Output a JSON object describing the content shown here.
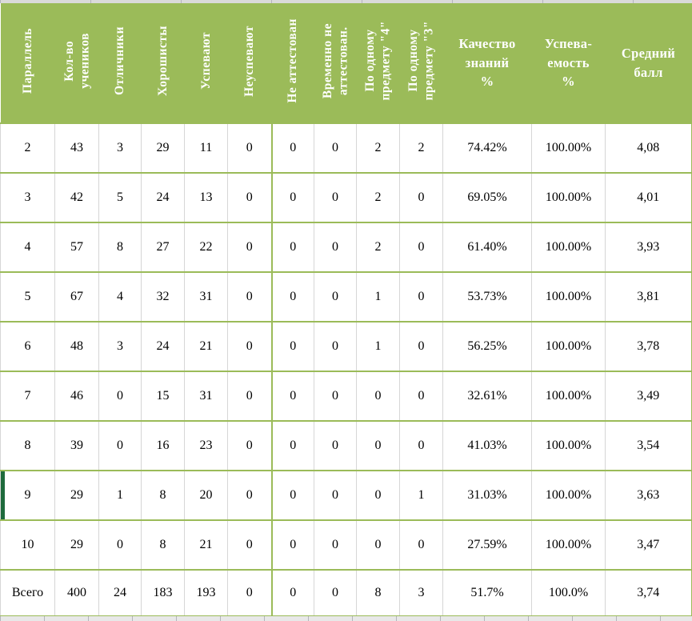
{
  "table": {
    "columns": [
      {
        "id": "parallel",
        "label": "Параллель",
        "orientation": "vertical"
      },
      {
        "id": "student-count",
        "label": "Кол-во\nучеников",
        "orientation": "vertical"
      },
      {
        "id": "excellent",
        "label": "Отличники",
        "orientation": "vertical"
      },
      {
        "id": "good-students",
        "label": "Хорошисты",
        "orientation": "vertical"
      },
      {
        "id": "passing",
        "label": "Успевают",
        "orientation": "vertical"
      },
      {
        "id": "failing",
        "label": "Неуспевают",
        "orientation": "vertical"
      },
      {
        "id": "not-certified",
        "label": "Не аттестован",
        "orientation": "vertical"
      },
      {
        "id": "temp-not-certified",
        "label": "Временно не\nаттестован.",
        "orientation": "vertical"
      },
      {
        "id": "one-subject-4",
        "label": "По одному\nпредмету \"4\"",
        "orientation": "vertical"
      },
      {
        "id": "one-subject-3",
        "label": "По одному\nпредмету \"3\"",
        "orientation": "vertical"
      },
      {
        "id": "knowledge-quality",
        "label": "Качество\nзнаний\n%",
        "orientation": "horizontal"
      },
      {
        "id": "performance",
        "label": "Успева-\nемость\n%",
        "orientation": "horizontal"
      },
      {
        "id": "average-score",
        "label": "Средний\nбалл",
        "orientation": "horizontal"
      }
    ],
    "rows": [
      {
        "cells": [
          "2",
          "43",
          "3",
          "29",
          "11",
          "0",
          "0",
          "0",
          "2",
          "2",
          "74.42%",
          "100.00%",
          "4,08"
        ]
      },
      {
        "cells": [
          "3",
          "42",
          "5",
          "24",
          "13",
          "0",
          "0",
          "0",
          "2",
          "0",
          "69.05%",
          "100.00%",
          "4,01"
        ]
      },
      {
        "cells": [
          "4",
          "57",
          "8",
          "27",
          "22",
          "0",
          "0",
          "0",
          "2",
          "0",
          "61.40%",
          "100.00%",
          "3,93"
        ]
      },
      {
        "cells": [
          "5",
          "67",
          "4",
          "32",
          "31",
          "0",
          "0",
          "0",
          "1",
          "0",
          "53.73%",
          "100.00%",
          "3,81"
        ]
      },
      {
        "cells": [
          "6",
          "48",
          "3",
          "24",
          "21",
          "0",
          "0",
          "0",
          "1",
          "0",
          "56.25%",
          "100.00%",
          "3,78"
        ]
      },
      {
        "cells": [
          "7",
          "46",
          "0",
          "15",
          "31",
          "0",
          "0",
          "0",
          "0",
          "0",
          "32.61%",
          "100.00%",
          "3,49"
        ]
      },
      {
        "cells": [
          "8",
          "39",
          "0",
          "16",
          "23",
          "0",
          "0",
          "0",
          "0",
          "0",
          "41.03%",
          "100.00%",
          "3,54"
        ]
      },
      {
        "cells": [
          "9",
          "29",
          "1",
          "8",
          "20",
          "0",
          "0",
          "0",
          "0",
          "1",
          "31.03%",
          "100.00%",
          "3,63"
        ]
      },
      {
        "cells": [
          "10",
          "29",
          "0",
          "8",
          "21",
          "0",
          "0",
          "0",
          "0",
          "0",
          "27.59%",
          "100.00%",
          "3,47"
        ]
      },
      {
        "cells": [
          "Всего",
          "400",
          "24",
          "183",
          "193",
          "0",
          "0",
          "0",
          "8",
          "3",
          "51.7%",
          "100.0%",
          "3,74"
        ]
      }
    ],
    "selected_row_index": 7
  },
  "colors": {
    "header_bg": "#9bbb59",
    "header_text": "#ffffff",
    "row_border_green": "#9bbb59",
    "cell_divider_gray": "#d6d6d6",
    "selection_bar_dark_green": "#1e6a3c",
    "cell_text": "#000000"
  }
}
